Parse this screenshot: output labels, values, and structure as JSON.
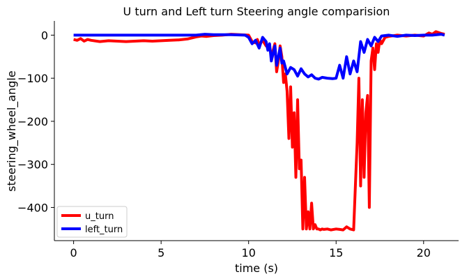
{
  "chart_data": {
    "type": "line",
    "title": "U turn and Left turn Steering angle comparision",
    "xlabel": "time (s)",
    "ylabel": "steering_wheel_angle",
    "xlim": [
      -1.1,
      22.0
    ],
    "ylim": [
      -477,
      33
    ],
    "xticks": [
      0,
      5,
      10,
      15,
      20
    ],
    "yticks": [
      0,
      -100,
      -200,
      -300,
      -400
    ],
    "grid": false,
    "legend_position": "lower-left",
    "series": [
      {
        "name": "u_turn",
        "color": "#ff0000",
        "x": [
          0,
          0.2,
          0.4,
          0.6,
          0.8,
          1.0,
          1.5,
          2.0,
          2.5,
          3.0,
          3.5,
          4.0,
          4.5,
          5.0,
          5.5,
          6.0,
          6.5,
          7.0,
          7.3,
          7.6,
          8.0,
          8.5,
          9.0,
          9.5,
          10.0,
          10.2,
          10.4,
          10.5,
          10.6,
          10.8,
          11.0,
          11.2,
          11.3,
          11.4,
          11.5,
          11.6,
          11.7,
          11.8,
          11.9,
          12.0,
          12.1,
          12.2,
          12.3,
          12.4,
          12.5,
          12.6,
          12.7,
          12.8,
          12.9,
          13.0,
          13.1,
          13.2,
          13.3,
          13.4,
          13.5,
          13.6,
          13.7,
          13.8,
          13.9,
          14.0,
          14.1,
          14.2,
          14.3,
          14.5,
          14.7,
          15.0,
          15.2,
          15.4,
          15.6,
          15.8,
          16.0,
          16.1,
          16.2,
          16.3,
          16.4,
          16.5,
          16.6,
          16.7,
          16.8,
          16.9,
          17.0,
          17.1,
          17.2,
          17.3,
          17.4,
          17.5,
          17.6,
          17.8,
          18.0,
          18.5,
          19.0,
          19.5,
          20.0,
          20.3,
          20.5,
          20.7,
          21.0,
          21.2
        ],
        "values": [
          -10,
          -12,
          -8,
          -14,
          -10,
          -12,
          -15,
          -13,
          -14,
          -15,
          -14,
          -13,
          -14,
          -13,
          -12,
          -11,
          -9,
          -4,
          -2,
          -3,
          -1,
          0,
          2,
          1,
          0,
          -15,
          -18,
          -10,
          -22,
          -12,
          -25,
          -30,
          -45,
          -35,
          -20,
          -85,
          -60,
          -25,
          -50,
          -110,
          -90,
          -130,
          -240,
          -120,
          -260,
          -180,
          -330,
          -150,
          -310,
          -290,
          -450,
          -330,
          -450,
          -410,
          -450,
          -390,
          -450,
          -440,
          -450,
          -450,
          -452,
          -450,
          -451,
          -450,
          -452,
          -450,
          -451,
          -452,
          -445,
          -450,
          -452,
          -350,
          -250,
          -100,
          -350,
          -150,
          -330,
          -180,
          -140,
          -400,
          -60,
          -30,
          -80,
          -20,
          -40,
          -10,
          -20,
          -5,
          -3,
          0,
          -2,
          0,
          -2,
          5,
          2,
          8,
          4,
          2
        ]
      },
      {
        "name": "left_turn",
        "color": "#0000ff",
        "x": [
          0,
          1,
          2,
          3,
          4,
          5,
          6,
          7,
          7.5,
          8.0,
          9.0,
          9.8,
          10.0,
          10.2,
          10.4,
          10.6,
          10.8,
          11.0,
          11.1,
          11.2,
          11.3,
          11.5,
          11.6,
          11.8,
          11.9,
          12.0,
          12.2,
          12.4,
          12.6,
          12.8,
          13.0,
          13.2,
          13.4,
          13.6,
          13.8,
          14.0,
          14.2,
          14.5,
          14.8,
          15.0,
          15.2,
          15.4,
          15.6,
          15.8,
          16.0,
          16.2,
          16.4,
          16.6,
          16.8,
          17.0,
          17.2,
          17.4,
          17.6,
          18.0,
          18.5,
          19.0,
          19.5,
          20.0,
          20.5,
          21.0,
          21.2
        ],
        "values": [
          0,
          0,
          0,
          0,
          0,
          0,
          0,
          0,
          2,
          1,
          1,
          0,
          -5,
          -20,
          -12,
          -30,
          -5,
          -15,
          -35,
          -20,
          -60,
          -25,
          -70,
          -30,
          -65,
          -60,
          -90,
          -75,
          -80,
          -95,
          -78,
          -90,
          -97,
          -92,
          -100,
          -102,
          -98,
          -100,
          -101,
          -100,
          -70,
          -100,
          -50,
          -90,
          -60,
          -85,
          -15,
          -40,
          -10,
          -25,
          -5,
          -15,
          -2,
          0,
          -3,
          0,
          -1,
          0,
          0,
          2,
          0
        ]
      }
    ]
  }
}
